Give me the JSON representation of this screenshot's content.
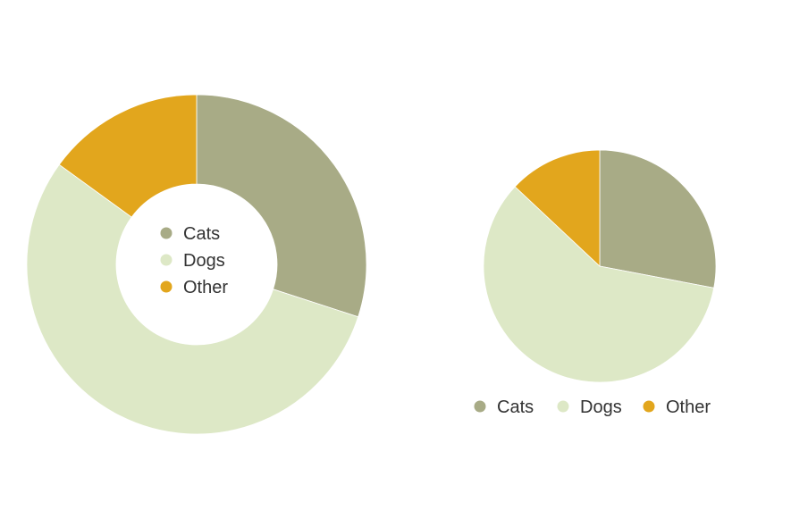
{
  "chart_data": [
    {
      "type": "pie",
      "variant": "donut",
      "categories": [
        "Cats",
        "Dogs",
        "Other"
      ],
      "values": [
        30,
        55,
        15
      ],
      "colors": [
        "#a8ab86",
        "#dde8c6",
        "#e2a61d"
      ],
      "legend_position": "center"
    },
    {
      "type": "pie",
      "categories": [
        "Cats",
        "Dogs",
        "Other"
      ],
      "values": [
        28,
        59,
        13
      ],
      "colors": [
        "#a8ab86",
        "#dde8c6",
        "#e2a61d"
      ],
      "legend_position": "bottom"
    }
  ]
}
